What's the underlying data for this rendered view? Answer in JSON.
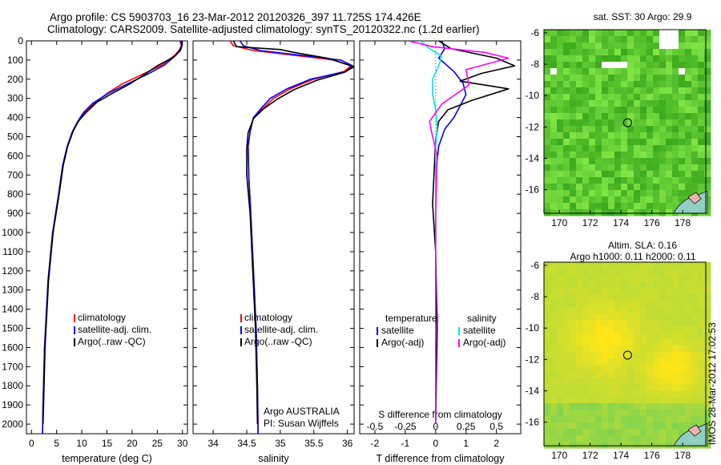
{
  "header": {
    "line1": "Argo profile: CS 5903703_16 23-Mar-2012 20120326_397 11.725S 174.426E",
    "line2": "Climatology: CARS2009. Satellite-adjusted climatology: synTS_20120322.nc (1.2d earlier)"
  },
  "watermark": "IMOS 28-Mar-2012 17:02:53",
  "colors": {
    "climatology": "#ff0000",
    "satellite": "#0000ff",
    "argo": "#000000",
    "satellite_s": "#00e5e5",
    "argo_s": "#ff00ff",
    "map_green": "#5cc832",
    "map_yellow": "#e6dc28"
  },
  "chart_data": [
    {
      "type": "line",
      "id": "temperature",
      "xlabel": "temperature (deg C)",
      "ylabel": "",
      "xlim": [
        -1,
        31
      ],
      "ylim": [
        2050,
        0
      ],
      "y_reversed": true,
      "xticks": [
        0,
        5,
        10,
        15,
        20,
        25,
        30
      ],
      "yticks": [
        0,
        100,
        200,
        300,
        400,
        500,
        600,
        700,
        800,
        900,
        1000,
        1100,
        1200,
        1300,
        1400,
        1500,
        1600,
        1700,
        1800,
        1900,
        2000
      ],
      "legend": [
        "climatology",
        "satellite-adj. clim.",
        "Argo(..raw -QC)"
      ],
      "legend_loc": "lower-center",
      "series": [
        {
          "name": "climatology",
          "color": "#ff0000",
          "x": [
            29.5,
            29.8,
            29.3,
            28.5,
            26,
            22,
            18,
            15,
            12.5,
            10.5,
            9.2,
            8.2,
            7.1,
            6.2,
            5.4,
            4.2,
            3.3,
            2.6,
            2.3,
            2.2
          ],
          "y": [
            0,
            25,
            50,
            75,
            125,
            175,
            225,
            275,
            325,
            375,
            425,
            475,
            550,
            650,
            800,
            1000,
            1250,
            1600,
            1900,
            2050
          ]
        },
        {
          "name": "satellite-adj. clim.",
          "color": "#0000ff",
          "x": [
            29.6,
            29.9,
            29.4,
            28.7,
            26.5,
            23,
            19,
            15.2,
            12.2,
            10.3,
            9.1,
            8.1,
            7.1,
            6.2,
            5.4,
            4.2,
            3.3,
            2.6,
            2.3,
            2.2
          ],
          "y": [
            0,
            25,
            50,
            75,
            125,
            175,
            225,
            275,
            325,
            375,
            425,
            475,
            550,
            650,
            800,
            1000,
            1250,
            1600,
            1900,
            2050
          ]
        },
        {
          "name": "Argo(..raw -QC)",
          "color": "#000000",
          "x": [
            29.8,
            29.9,
            29.6,
            28.2,
            25,
            22.5,
            19.5,
            16,
            13,
            11,
            9.3,
            8.3,
            7.2,
            6.3,
            5.5,
            4.3,
            3.4,
            2.7,
            2.4,
            2.3
          ],
          "y": [
            0,
            25,
            50,
            85,
            130,
            175,
            225,
            275,
            320,
            370,
            420,
            470,
            550,
            650,
            800,
            1000,
            1250,
            1600,
            1900,
            2000
          ]
        }
      ]
    },
    {
      "type": "line",
      "id": "salinity",
      "xlabel": "salinity",
      "ylabel": "",
      "xlim": [
        33.7,
        36.1
      ],
      "ylim": [
        2050,
        0
      ],
      "y_reversed": true,
      "xticks": [
        34,
        34.5,
        35,
        35.5,
        36
      ],
      "legend": [
        "climatology",
        "satellite-adj. clim.",
        "Argo(..raw -QC)"
      ],
      "legend_loc": "lower-center",
      "annotations": [
        "Argo AUSTRALIA",
        "PI: Susan Wijffels"
      ],
      "series": [
        {
          "name": "climatology",
          "color": "#ff0000",
          "x": [
            34.25,
            34.3,
            34.6,
            35.2,
            35.8,
            36.05,
            35.95,
            35.5,
            35.15,
            34.9,
            34.75,
            34.6,
            34.55,
            34.52,
            34.53,
            34.56,
            34.6,
            34.64,
            34.66,
            34.67
          ],
          "y": [
            0,
            25,
            50,
            75,
            100,
            130,
            160,
            200,
            250,
            300,
            350,
            400,
            475,
            550,
            700,
            900,
            1200,
            1500,
            1800,
            2050
          ]
        },
        {
          "name": "satellite-adj. clim.",
          "color": "#0000ff",
          "x": [
            34.4,
            34.45,
            34.7,
            35.3,
            35.9,
            36.08,
            35.98,
            35.45,
            35.1,
            34.85,
            34.72,
            34.6,
            34.55,
            34.52,
            34.53,
            34.56,
            34.6,
            34.64,
            34.66,
            34.67
          ],
          "y": [
            0,
            25,
            50,
            75,
            100,
            130,
            160,
            200,
            250,
            300,
            350,
            400,
            475,
            550,
            700,
            900,
            1200,
            1500,
            1800,
            2050
          ]
        },
        {
          "name": "Argo(..raw -QC)",
          "color": "#000000",
          "x": [
            34.3,
            34.35,
            35.0,
            35.2,
            35.7,
            36.1,
            35.95,
            35.55,
            35.2,
            34.95,
            34.75,
            34.6,
            34.52,
            34.5,
            34.5,
            34.55,
            34.59,
            34.63,
            34.65,
            34.66
          ],
          "y": [
            0,
            30,
            45,
            60,
            90,
            135,
            165,
            205,
            255,
            305,
            355,
            405,
            480,
            560,
            700,
            900,
            1200,
            1500,
            1800,
            2000
          ]
        }
      ]
    },
    {
      "type": "line",
      "id": "differences",
      "xlabel": "T difference from climatology",
      "xlabel2": "S difference from climatology",
      "xlim": [
        -2.5,
        2.8
      ],
      "ylim": [
        2050,
        0
      ],
      "y_reversed": true,
      "xticks": [
        -2,
        -1,
        0,
        1,
        2
      ],
      "x2ticks": [
        -0.5,
        -0.25,
        0,
        0.25,
        0.5
      ],
      "legend_titles": [
        "temperature",
        "salinity"
      ],
      "legend": [
        "satellite",
        "Argo(-adj)",
        "satellite",
        "Argo(-adj)"
      ],
      "legend_loc": "lower-center",
      "series": [
        {
          "name": "satellite",
          "group": "temperature",
          "color": "#0000ff",
          "x": [
            0.2,
            0.3,
            0.1,
            0.6,
            0.9,
            1.0,
            0.8,
            0.6,
            0.3,
            0.1,
            0,
            0,
            0,
            0,
            0
          ],
          "y": [
            0,
            40,
            90,
            160,
            220,
            280,
            340,
            400,
            460,
            550,
            700,
            900,
            1200,
            1600,
            2000
          ]
        },
        {
          "name": "Argo(-adj)",
          "group": "temperature",
          "color": "#000000",
          "x": [
            0.1,
            0.5,
            2.0,
            2.6,
            1.5,
            0.8,
            2.4,
            1.2,
            0.4,
            0.1,
            0.0,
            -0.1,
            0.0,
            0.05,
            0
          ],
          "y": [
            0,
            40,
            90,
            130,
            170,
            210,
            250,
            310,
            360,
            420,
            520,
            850,
            1100,
            1500,
            2000
          ]
        },
        {
          "name": "satellite",
          "group": "salinity",
          "color": "#00e5e5",
          "x": [
            -0.5,
            -0.2,
            0.2,
            0.1,
            -0.1,
            -0.1,
            0.0,
            0.05,
            0,
            0,
            0,
            0
          ],
          "y": [
            0,
            40,
            80,
            130,
            200,
            280,
            360,
            450,
            550,
            800,
            1200,
            2000
          ]
        },
        {
          "name": "Argo(-adj)",
          "group": "salinity",
          "color": "#ff00ff",
          "x": [
            -0.9,
            -0.1,
            1.6,
            2.4,
            1.0,
            1.1,
            0.2,
            -0.2,
            -0.1,
            0.05,
            0,
            0
          ],
          "y": [
            0,
            30,
            60,
            90,
            150,
            230,
            330,
            420,
            500,
            600,
            900,
            2000
          ]
        }
      ]
    },
    {
      "type": "heatmap",
      "id": "sst-map",
      "title": "sat. SST: 30 Argo: 29.9",
      "xticks": [
        170,
        172,
        174,
        176,
        178
      ],
      "yticks": [
        -6,
        -8,
        -10,
        -12,
        -14,
        -16
      ],
      "xlim": [
        169,
        179.5
      ],
      "ylim": [
        -17.5,
        -5.8
      ],
      "marker": {
        "lon": 174.426,
        "lat": -11.725
      }
    },
    {
      "type": "heatmap",
      "id": "sla-map",
      "title": "Altim. SLA: 0.16",
      "subtitle": "Argo h1000: 0.11 h2000: 0.11",
      "xticks": [
        170,
        172,
        174,
        176,
        178
      ],
      "yticks": [
        -6,
        -8,
        -10,
        -12,
        -14,
        -16
      ],
      "xlim": [
        169,
        179.5
      ],
      "ylim": [
        -17.5,
        -5.8
      ],
      "marker": {
        "lon": 174.426,
        "lat": -11.725
      }
    }
  ]
}
